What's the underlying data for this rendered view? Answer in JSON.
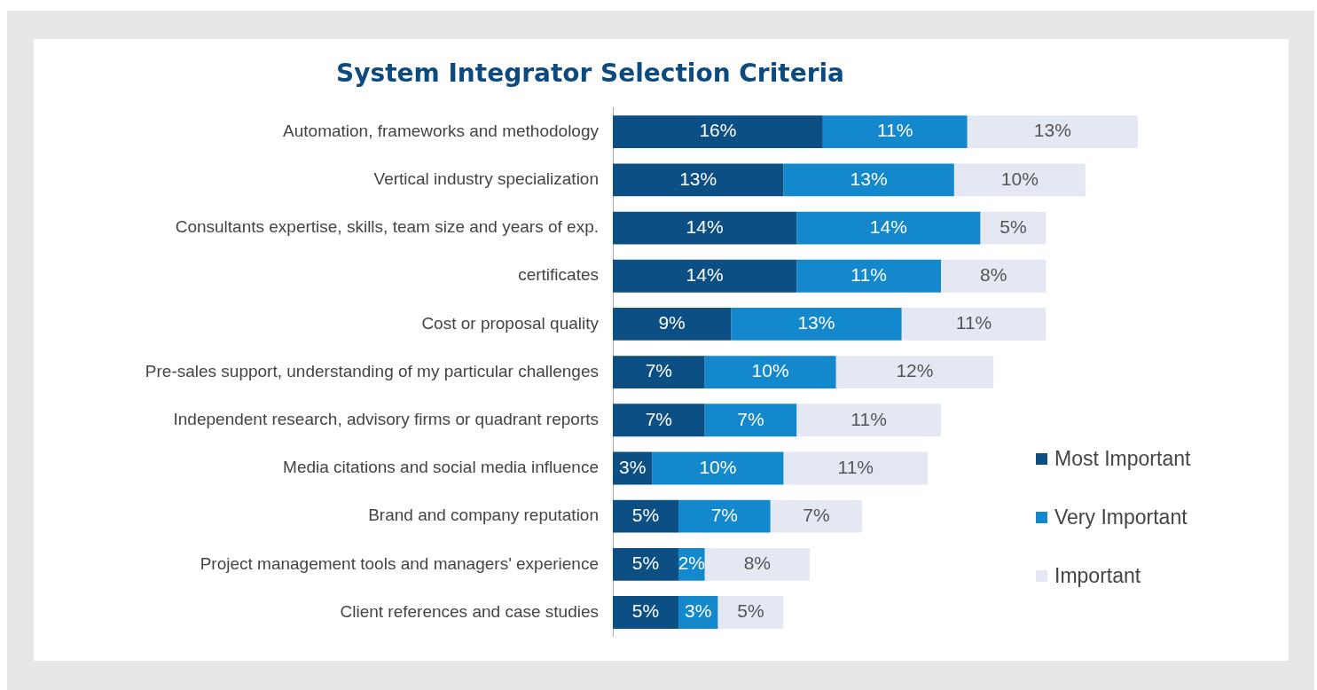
{
  "chart_data": {
    "type": "bar",
    "orientation": "horizontal",
    "stacked": true,
    "title": "System Integrator Selection Criteria",
    "categories": [
      "Automation, frameworks and methodology",
      "Vertical industry specialization",
      "Consultants expertise, skills, team size and years of exp.",
      "certificates",
      "Cost or proposal quality",
      "Pre-sales support, understanding of my particular challenges",
      "Independent research, advisory firms or quadrant reports",
      "Media citations and social media influence",
      "Brand and company reputation",
      "Project management tools and managers' experience",
      "Client references and case studies"
    ],
    "series": [
      {
        "name": "Most Important",
        "color": "#0b4f85",
        "values": [
          16,
          13,
          14,
          14,
          9,
          7,
          7,
          3,
          5,
          5,
          5
        ],
        "value_labels": [
          "16%",
          "13%",
          "14%",
          "14%",
          "9%",
          "7%",
          "7%",
          "3%",
          "5%",
          "5%",
          "5%"
        ]
      },
      {
        "name": "Very Important",
        "color": "#1488cc",
        "values": [
          11,
          13,
          14,
          11,
          13,
          10,
          7,
          10,
          7,
          2,
          3
        ],
        "value_labels": [
          "11%",
          "13%",
          "14%",
          "11%",
          "13%",
          "10%",
          "7%",
          "10%",
          "7%",
          "2%",
          "3%"
        ]
      },
      {
        "name": "Important",
        "color": "#e4e8f3",
        "values": [
          13,
          10,
          5,
          8,
          11,
          12,
          11,
          11,
          7,
          8,
          5
        ],
        "value_labels": [
          "13%",
          "10%",
          "5%",
          "8%",
          "11%",
          "12%",
          "11%",
          "11%",
          "7%",
          "8%",
          "5%"
        ]
      }
    ],
    "legend": "right"
  }
}
